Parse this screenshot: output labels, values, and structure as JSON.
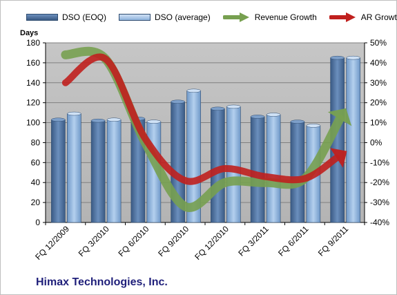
{
  "chart_data": {
    "type": "bar",
    "categories": [
      "FQ 12/2009",
      "FQ 3/2010",
      "FQ 6/2010",
      "FQ 9/2010",
      "FQ 12/2010",
      "FQ 3/2011",
      "FQ 6/2011",
      "FQ 9/2011"
    ],
    "ylabel": "Days",
    "ylim": [
      0,
      180
    ],
    "yticks": [
      0,
      20,
      40,
      60,
      80,
      100,
      120,
      140,
      160,
      180
    ],
    "y2lim": [
      -40,
      50
    ],
    "y2ticks": [
      -40,
      -30,
      -20,
      -10,
      0,
      10,
      20,
      30,
      40,
      50
    ],
    "y2tick_labels": [
      "-40%",
      "-30%",
      "-20%",
      "-10%",
      "0%",
      "10%",
      "20%",
      "30%",
      "40%",
      "50%"
    ],
    "grid": true,
    "legend_position": "top",
    "series": [
      {
        "name": "DSO (EOQ)",
        "kind": "bar",
        "axis": "left",
        "color": "#4a6f9c",
        "values": [
          103,
          102,
          104,
          121,
          114,
          106,
          101,
          165
        ]
      },
      {
        "name": "DSO (average)",
        "kind": "bar",
        "axis": "left",
        "color": "#8fb3dc",
        "values": [
          109,
          103,
          101,
          132,
          116,
          108,
          97,
          165
        ]
      },
      {
        "name": "Revenue Growth",
        "kind": "arrow-line",
        "axis": "right",
        "color": "#77a050",
        "values": [
          44,
          42,
          0,
          -32,
          -20,
          -20,
          -18,
          16
        ]
      },
      {
        "name": "AR Growth",
        "kind": "arrow-line",
        "axis": "right",
        "color": "#c0201e",
        "values": [
          30,
          42,
          2,
          -19,
          -13,
          -17,
          -18,
          -5
        ]
      }
    ]
  },
  "footer": {
    "company": "Himax Technologies, Inc."
  },
  "colors": {
    "plot_background": "#c0c0c0",
    "gridline": "#7f7f7f",
    "company_text": "#1f1f7a"
  }
}
